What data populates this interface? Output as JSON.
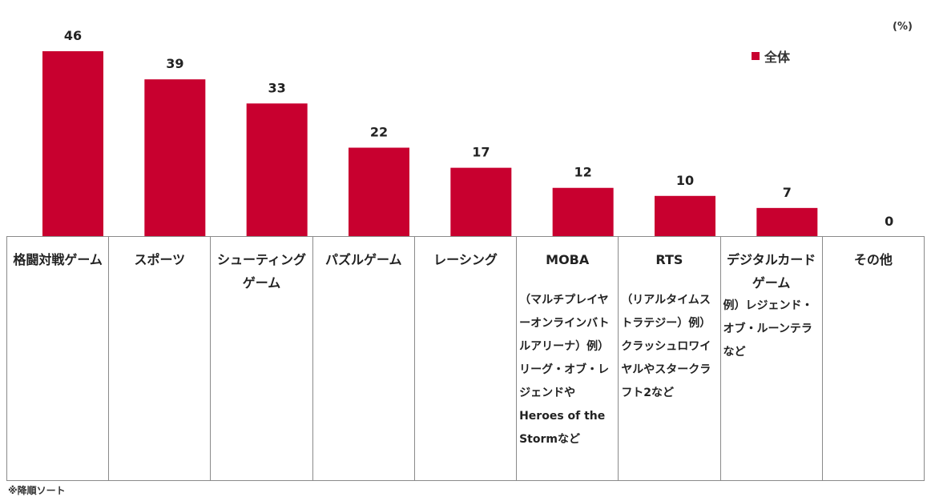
{
  "chart_data": {
    "type": "bar",
    "title": "",
    "xlabel": "",
    "ylabel": "",
    "unit": "(%)",
    "ylim": [
      0,
      46
    ],
    "legend_position": "top-right",
    "grid": false,
    "categories": [
      "格闘対戦ゲーム",
      "スポーツ",
      "シューティングゲーム",
      "パズルゲーム",
      "レーシング",
      "MOBA",
      "RTS",
      "デジタルカードゲーム",
      "その他"
    ],
    "category_notes": [
      "",
      "",
      "",
      "",
      "",
      "（マルチプレイヤーオンラインバトルアリーナ）例） リーグ・オブ・レジェンドやHeroes of the Stormなど",
      "（リアルタイムストラテジー）例）クラッシュロワイヤルやスタークラフト2など",
      "例）レジェンド・オブ・ルーンテラなど",
      ""
    ],
    "series": [
      {
        "name": "全体",
        "color": "#c8002f",
        "values": [
          46,
          39,
          33,
          22,
          17,
          12,
          10,
          7,
          0
        ]
      }
    ]
  },
  "footnote": "※降順ソート"
}
